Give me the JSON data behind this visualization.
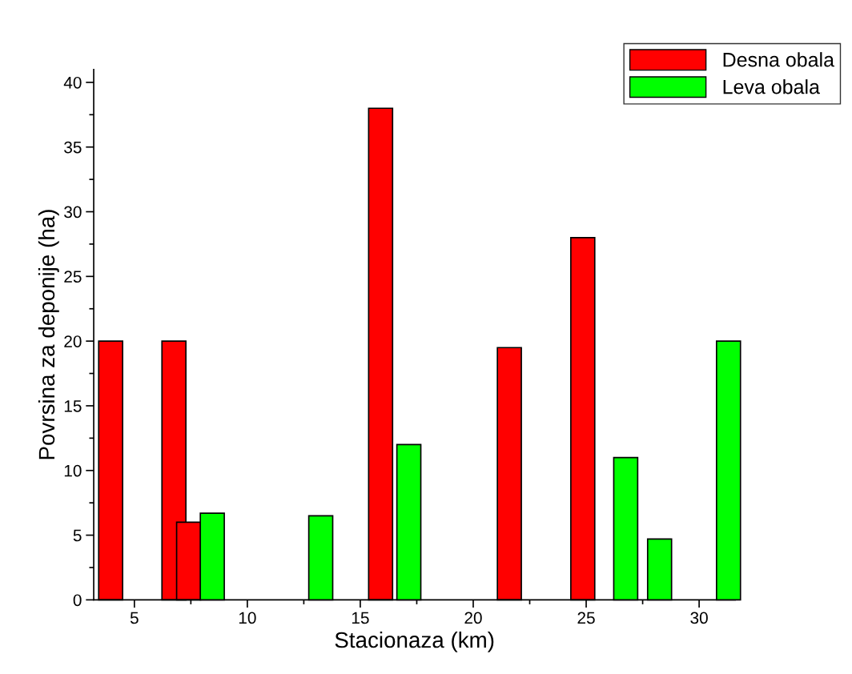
{
  "chart_data": {
    "type": "bar",
    "xlabel": "Stacionaza (km)",
    "ylabel": "Povrsina za deponije (ha)",
    "series": [
      {
        "name": "Desna obala",
        "color": "#ff0000",
        "x": [
          3.95,
          6.75,
          7.4,
          15.9,
          21.6,
          24.85
        ],
        "values": [
          20,
          20,
          6,
          38,
          19.5,
          28
        ]
      },
      {
        "name": "Leva obala",
        "color": "#00ff00",
        "x": [
          8.45,
          13.25,
          17.15,
          26.75,
          28.25,
          31.3
        ],
        "values": [
          6.7,
          6.5,
          12,
          11,
          4.7,
          20
        ]
      }
    ],
    "xlim": [
      3.2,
      31.6
    ],
    "xticks": [
      5,
      10,
      15,
      20,
      25,
      30
    ],
    "ylim": [
      0,
      41
    ],
    "yticks": [
      0,
      5,
      10,
      15,
      20,
      25,
      30,
      35,
      40
    ],
    "legend": "top right",
    "grid": false
  }
}
